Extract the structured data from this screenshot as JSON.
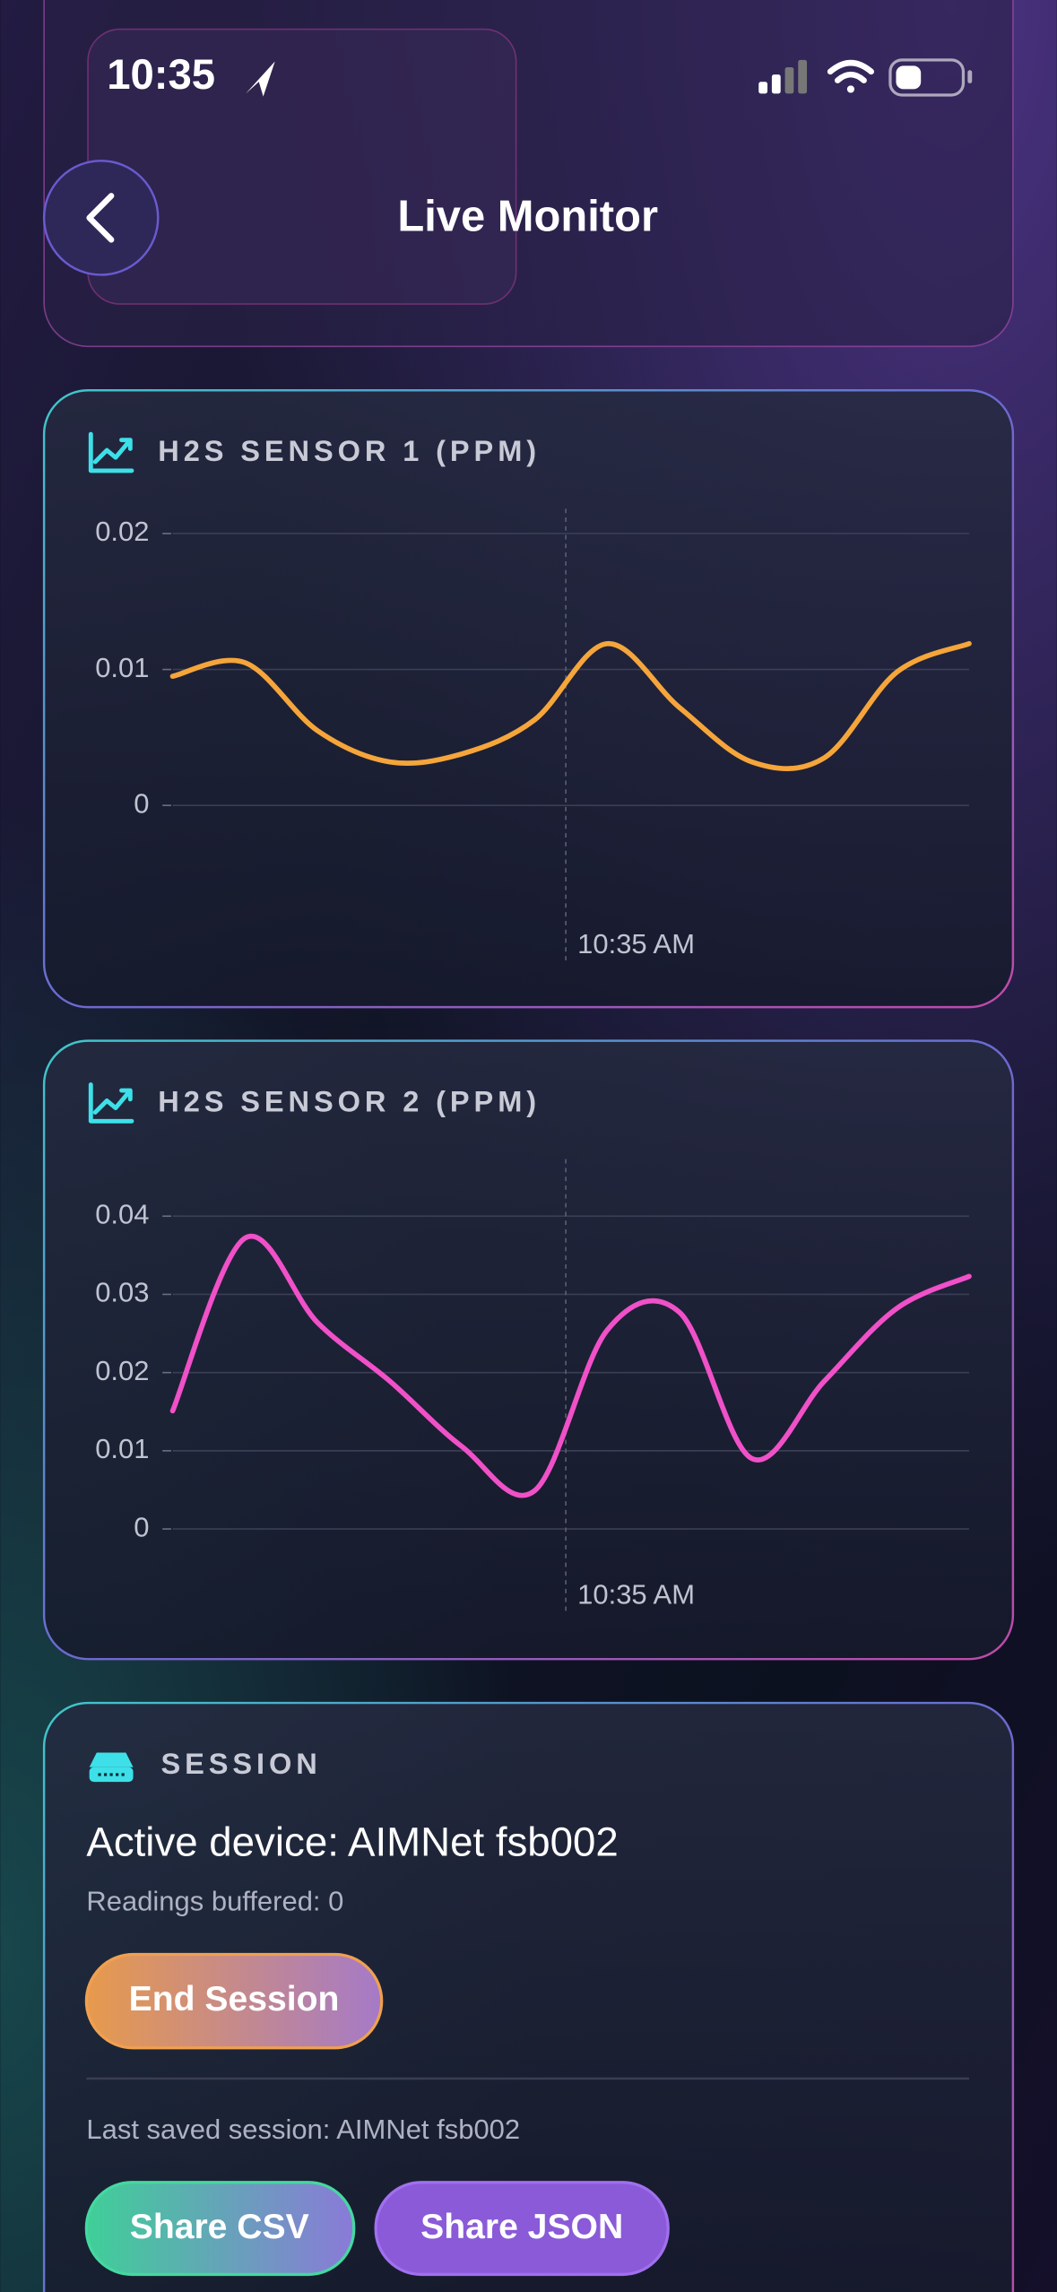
{
  "status_bar": {
    "time": "10:35"
  },
  "header": {
    "title": "Live Monitor"
  },
  "charts": [
    {
      "type": "line",
      "title": "H2S SENSOR 1 (PPM)",
      "color": "#f5a53a",
      "x": [
        0,
        1,
        2,
        3,
        4,
        5,
        6,
        7,
        8,
        9,
        10,
        11
      ],
      "xlim": [
        0,
        11
      ],
      "values": [
        0.0095,
        0.0105,
        0.0055,
        0.0032,
        0.0038,
        0.0063,
        0.0119,
        0.0072,
        0.0032,
        0.0035,
        0.0098,
        0.0119
      ],
      "ylim": [
        0,
        0.02
      ],
      "yticks": [
        0,
        0.01,
        0.02
      ],
      "xticks": [
        {
          "value": 5.43,
          "label": "10:35 AM"
        }
      ],
      "grid": true
    },
    {
      "type": "line",
      "title": "H2S SENSOR 2 (PPM)",
      "color": "#f050c8",
      "x": [
        0,
        1,
        2,
        3,
        4,
        5,
        6,
        7,
        8,
        9,
        10,
        11
      ],
      "xlim": [
        0,
        11
      ],
      "values": [
        0.0151,
        0.0372,
        0.0264,
        0.0189,
        0.0105,
        0.0049,
        0.0254,
        0.0277,
        0.009,
        0.0189,
        0.0282,
        0.0323
      ],
      "ylim": [
        0,
        0.04
      ],
      "yticks": [
        0,
        0.01,
        0.02,
        0.03,
        0.04
      ],
      "xticks": [
        {
          "value": 5.43,
          "label": "10:35 AM"
        }
      ],
      "grid": true
    }
  ],
  "session": {
    "heading": "SESSION",
    "active_device": "Active device: AIMNet fsb002",
    "buffered": "Readings buffered: 0",
    "end_button": "End Session",
    "last_saved": "Last saved session: AIMNet fsb002",
    "share_csv": "Share CSV",
    "share_json": "Share JSON"
  }
}
